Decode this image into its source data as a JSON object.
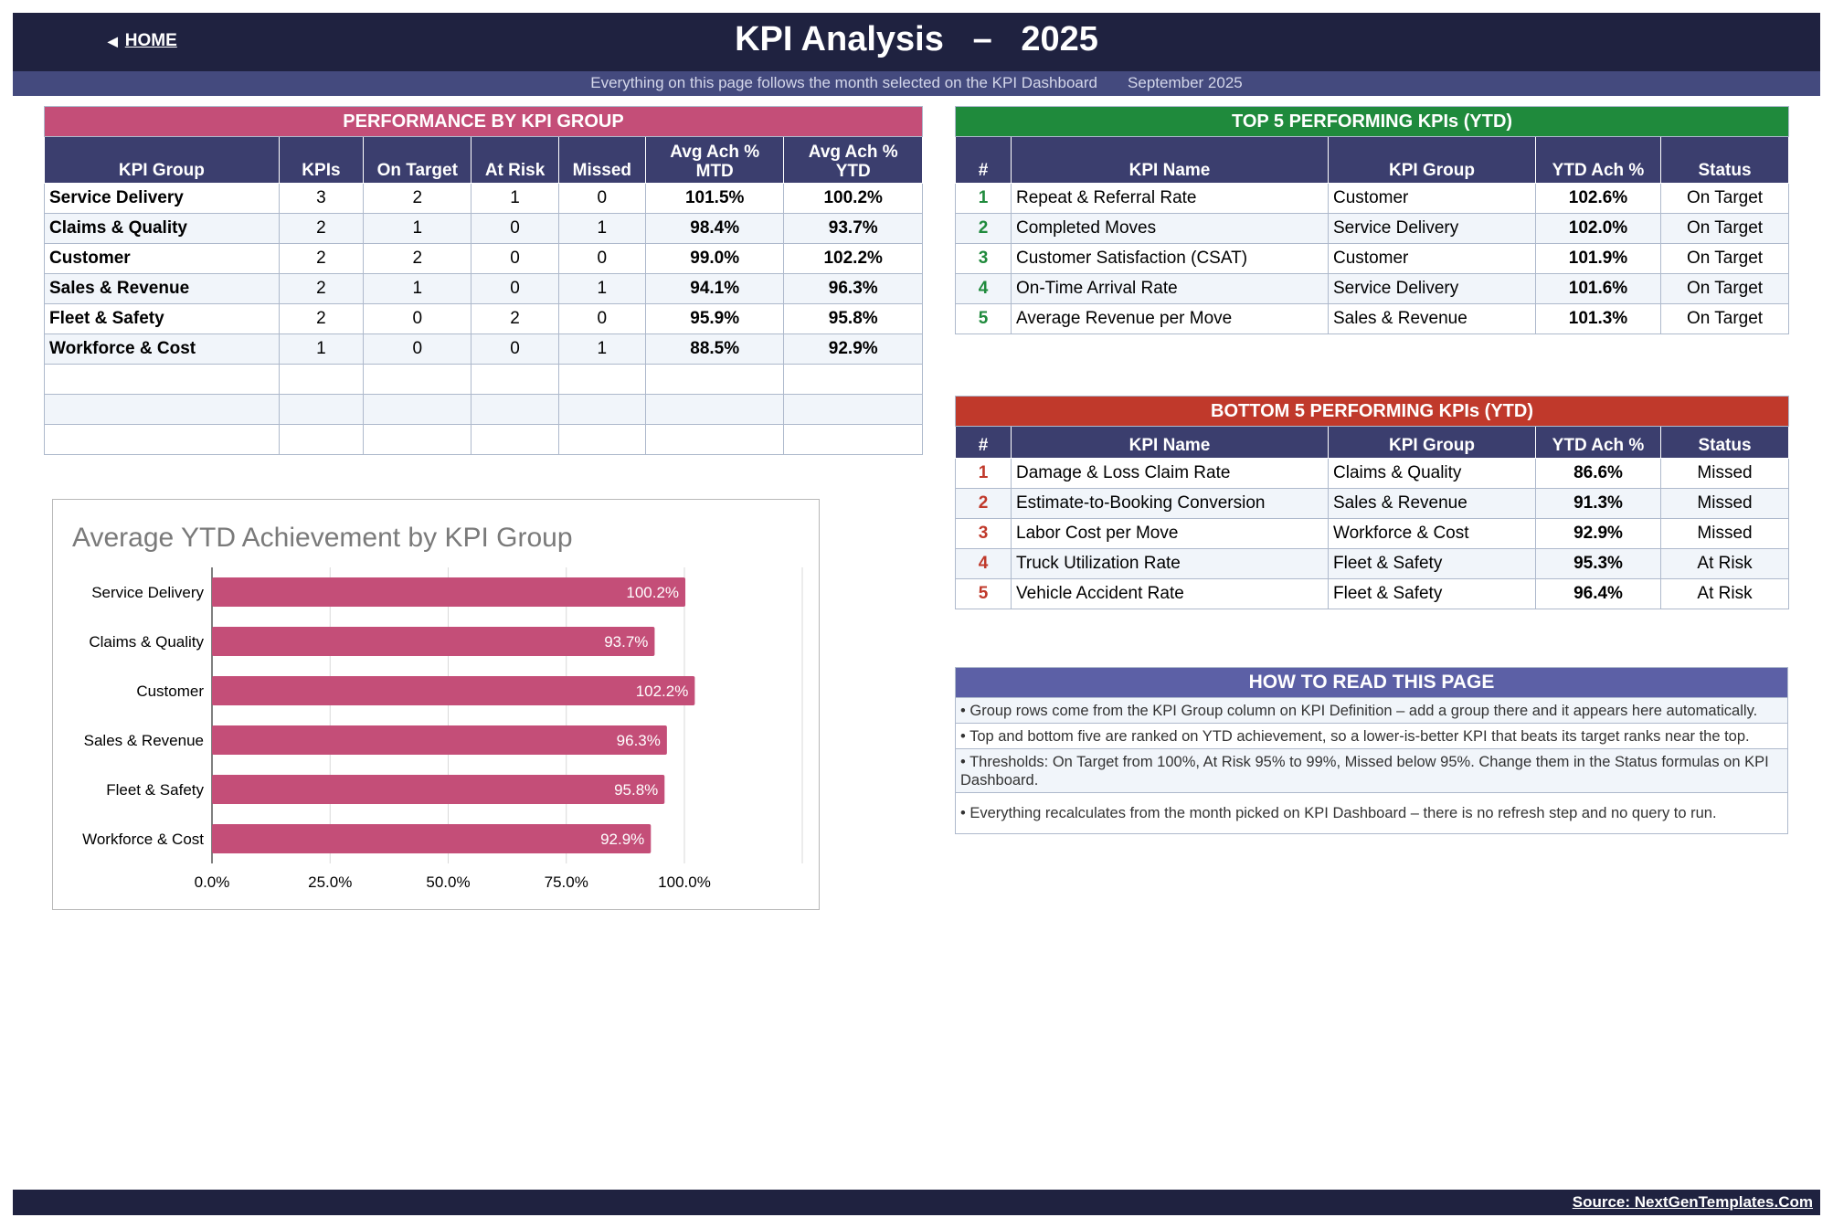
{
  "header": {
    "home_label": "HOME",
    "title": "KPI Analysis",
    "title_dash": "–",
    "title_year": "2025",
    "subtitle": "Everything on this page follows the month selected on the KPI Dashboard",
    "selected_month": "September 2025"
  },
  "colors": {
    "navy": "#1f2240",
    "header_fill": "#3b3e6e",
    "pink": "#c44e78",
    "green": "#1f8a3c",
    "red": "#c0392b",
    "purple": "#5c60a6"
  },
  "group_table": {
    "banner": "PERFORMANCE BY KPI GROUP",
    "headers": [
      "KPI Group",
      "KPIs",
      "On Target",
      "At Risk",
      "Missed",
      "Avg Ach % MTD",
      "Avg Ach % YTD"
    ],
    "rows": [
      {
        "group": "Service Delivery",
        "kpis": "3",
        "on_target": "2",
        "at_risk": "1",
        "missed": "0",
        "mtd": "101.5%",
        "ytd": "100.2%"
      },
      {
        "group": "Claims & Quality",
        "kpis": "2",
        "on_target": "1",
        "at_risk": "0",
        "missed": "1",
        "mtd": "98.4%",
        "ytd": "93.7%"
      },
      {
        "group": "Customer",
        "kpis": "2",
        "on_target": "2",
        "at_risk": "0",
        "missed": "0",
        "mtd": "99.0%",
        "ytd": "102.2%"
      },
      {
        "group": "Sales & Revenue",
        "kpis": "2",
        "on_target": "1",
        "at_risk": "0",
        "missed": "1",
        "mtd": "94.1%",
        "ytd": "96.3%"
      },
      {
        "group": "Fleet & Safety",
        "kpis": "2",
        "on_target": "0",
        "at_risk": "2",
        "missed": "0",
        "mtd": "95.9%",
        "ytd": "95.8%"
      },
      {
        "group": "Workforce & Cost",
        "kpis": "1",
        "on_target": "0",
        "at_risk": "0",
        "missed": "1",
        "mtd": "88.5%",
        "ytd": "92.9%"
      }
    ]
  },
  "top5": {
    "banner": "TOP 5 PERFORMING KPIs  (YTD)",
    "headers": [
      "#",
      "KPI Name",
      "KPI Group",
      "YTD Ach %",
      "Status"
    ],
    "rows": [
      {
        "rank": "1",
        "name": "Repeat & Referral Rate",
        "group": "Customer",
        "ytd": "102.6%",
        "status": "On Target"
      },
      {
        "rank": "2",
        "name": "Completed Moves",
        "group": "Service Delivery",
        "ytd": "102.0%",
        "status": "On Target"
      },
      {
        "rank": "3",
        "name": "Customer Satisfaction (CSAT)",
        "group": "Customer",
        "ytd": "101.9%",
        "status": "On Target"
      },
      {
        "rank": "4",
        "name": "On-Time Arrival Rate",
        "group": "Service Delivery",
        "ytd": "101.6%",
        "status": "On Target"
      },
      {
        "rank": "5",
        "name": "Average Revenue per Move",
        "group": "Sales & Revenue",
        "ytd": "101.3%",
        "status": "On Target"
      }
    ]
  },
  "bottom5": {
    "banner": "BOTTOM 5 PERFORMING KPIs  (YTD)",
    "headers": [
      "#",
      "KPI Name",
      "KPI Group",
      "YTD Ach %",
      "Status"
    ],
    "rows": [
      {
        "rank": "1",
        "name": "Damage & Loss Claim Rate",
        "group": "Claims & Quality",
        "ytd": "86.6%",
        "status": "Missed"
      },
      {
        "rank": "2",
        "name": "Estimate-to-Booking Conversion",
        "group": "Sales & Revenue",
        "ytd": "91.3%",
        "status": "Missed"
      },
      {
        "rank": "3",
        "name": "Labor Cost per Move",
        "group": "Workforce & Cost",
        "ytd": "92.9%",
        "status": "Missed"
      },
      {
        "rank": "4",
        "name": "Truck Utilization Rate",
        "group": "Fleet & Safety",
        "ytd": "95.3%",
        "status": "At Risk"
      },
      {
        "rank": "5",
        "name": "Vehicle Accident Rate",
        "group": "Fleet & Safety",
        "ytd": "96.4%",
        "status": "At Risk"
      }
    ]
  },
  "notes": {
    "title": "HOW TO READ THIS PAGE",
    "items": [
      "•  Group rows come from the KPI Group column on KPI Definition – add a group there and it appears here automatically.",
      "•  Top and bottom five are ranked on YTD achievement, so a lower-is-better KPI that beats its target ranks near the top.",
      "•  Thresholds: On Target from 100%, At Risk 95% to 99%, Missed below 95%. Change them in the Status formulas on KPI Dashboard.",
      "•  Everything recalculates from the month picked on KPI Dashboard – there is no refresh step and no query to run."
    ]
  },
  "chart_data": {
    "type": "bar",
    "orientation": "horizontal",
    "title": "Average YTD Achievement by KPI Group",
    "categories": [
      "Service Delivery",
      "Claims & Quality",
      "Customer",
      "Sales & Revenue",
      "Fleet & Safety",
      "Workforce & Cost"
    ],
    "values": [
      100.2,
      93.7,
      102.2,
      96.3,
      95.8,
      92.9
    ],
    "data_labels": [
      "100.2%",
      "93.7%",
      "102.2%",
      "96.3%",
      "95.8%",
      "92.9%"
    ],
    "xlim": [
      0,
      125
    ],
    "ticks": [
      0,
      25,
      50,
      75,
      100
    ],
    "tick_labels": [
      "0.0%",
      "25.0%",
      "50.0%",
      "75.0%",
      "100.0%"
    ],
    "bar_color": "#c44e78",
    "grid": true,
    "legend": "none"
  },
  "footer": {
    "source": "Source: NextGenTemplates.Com"
  }
}
